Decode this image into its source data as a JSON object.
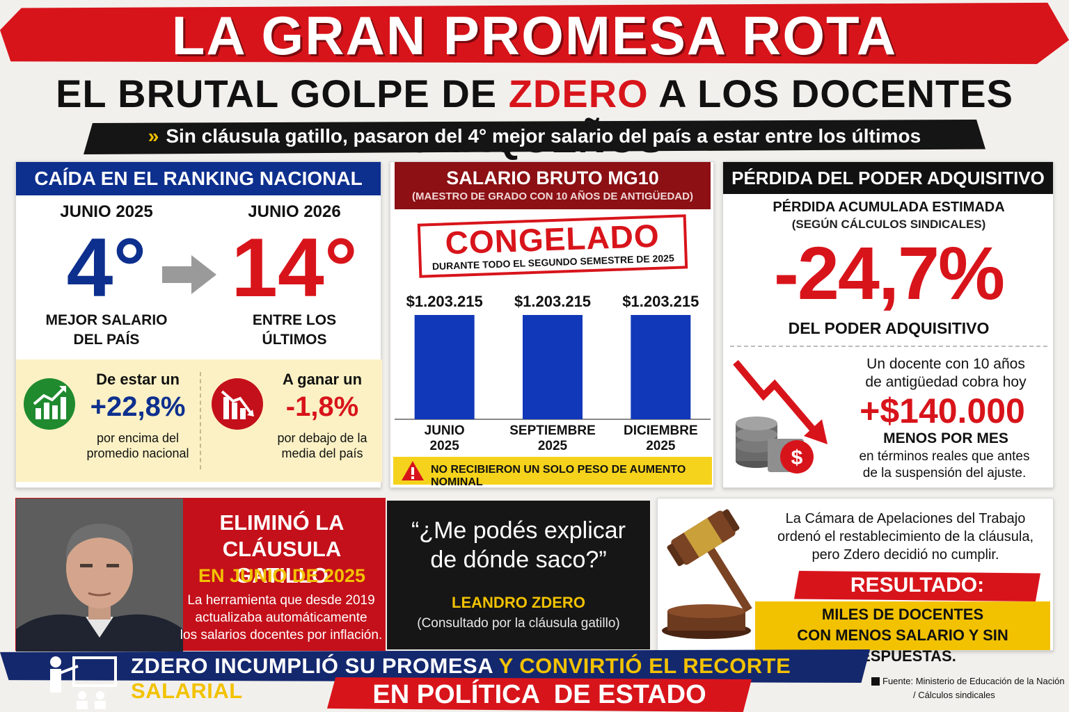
{
  "header": {
    "title": "LA GRAN PROMESA ROTA",
    "subtitle_pre": "EL BRUTAL GOLPE DE",
    "subtitle_red": "ZDERO",
    "subtitle_post": "A LOS DOCENTES CHAQUEÑOS",
    "tagline": "Sin cláusula gatillo, pasaron del 4° mejor salario del país a estar entre los últimos"
  },
  "ranking": {
    "heading": "CAÍDA EN EL RANKING NACIONAL",
    "before_year": "JUNIO 2025",
    "before_rank": "4°",
    "before_label_1": "MEJOR SALARIO",
    "before_label_2": "DEL PAÍS",
    "after_year": "JUNIO 2026",
    "after_rank": "14°",
    "after_label_1": "ENTRE LOS",
    "after_label_2": "ÚLTIMOS",
    "stat_up_pre": "De estar un",
    "stat_up_value": "+22,8%",
    "stat_up_1": "por encima del",
    "stat_up_2": "promedio nacional",
    "stat_down_pre": "A ganar un",
    "stat_down_value": "-1,8%",
    "stat_down_1": "por debajo de la",
    "stat_down_2": "media del país"
  },
  "salary": {
    "heading": "SALARIO BRUTO MG10",
    "subheading": "(MAESTRO DE GRADO CON 10 AÑOS DE ANTIGÜEDAD)",
    "stamp": "CONGELADO",
    "stamp_sub": "DURANTE TODO EL SEGUNDO SEMESTRE DE 2025",
    "warning": "NO RECIBIERON UN SOLO PESO DE AUMENTO NOMINAL"
  },
  "chart_data": {
    "type": "bar",
    "categories": [
      "JUNIO 2025",
      "SEPTIEMBRE 2025",
      "DICIEMBRE 2025"
    ],
    "category_lines": [
      [
        "JUNIO",
        "2025"
      ],
      [
        "SEPTIEMBRE",
        "2025"
      ],
      [
        "DICIEMBRE",
        "2025"
      ]
    ],
    "values": [
      1203215,
      1203215,
      1203215
    ],
    "value_labels": [
      "$1.203.215",
      "$1.203.215",
      "$1.203.215"
    ],
    "title": "SALARIO BRUTO MG10",
    "bar_color": "#1138b8"
  },
  "purchasing": {
    "heading": "PÉRDIDA DEL PODER ADQUISITIVO",
    "sub1": "PÉRDIDA ACUMULADA ESTIMADA",
    "sub2": "(SEGÚN CÁLCULOS SINDICALES)",
    "value": "-24,7%",
    "value_label": "DEL PODER ADQUISITIVO",
    "docente_1": "Un docente con 10 años",
    "docente_2": "de antigüedad cobra hoy",
    "amount": "+$140.000",
    "amount_label": "MENOS POR MES",
    "real_1": "en términos reales que antes",
    "real_2": "de la suspensión del ajuste."
  },
  "clausula": {
    "line1": "ELIMINÓ LA",
    "line2": "CLÁUSULA GATILLO",
    "date": "EN JUNIO DE 2025",
    "desc1": "La herramienta que desde 2019",
    "desc2": "actualizaba automáticamente",
    "desc3": "los salarios docentes por inflación."
  },
  "quote": {
    "text1": "“¿Me podés explicar",
    "text2": "de dónde saco?”",
    "author": "LEANDRO ZDERO",
    "context": "(Consultado por la cláusula gatillo)"
  },
  "court": {
    "text1": "La Cámara de Apelaciones del Trabajo",
    "text2": "ordenó el restablecimiento de la cláusula,",
    "text3": "pero Zdero decidió no cumplir.",
    "result_label": "RESULTADO:",
    "result1": "MILES DE DOCENTES",
    "result2": "CON MENOS SALARIO Y SIN RESPUESTAS."
  },
  "footer": {
    "line1_white": "ZDERO INCUMPLIÓ SU PROMESA",
    "line1_yellow": "Y CONVIRTIÓ EL RECORTE SALARIAL",
    "line2": "EN POLÍTICA  DE ESTADO",
    "source1": "Fuente: Ministerio de Educación de la Nación",
    "source2": "/ Cálculos sindicales"
  },
  "colors": {
    "red": "#d8141b",
    "navy": "#0d2f8e",
    "yellow": "#f2c200",
    "dark_red": "#8c1014",
    "green": "#1f8a2e"
  },
  "icons": [
    "chevrons-icon",
    "arrow-right-icon",
    "growth-chart-icon",
    "decline-chart-icon",
    "warning-icon",
    "falling-arrow-icon",
    "coins-icon",
    "dollar-badge-icon",
    "gavel-icon",
    "teacher-icon",
    "square-bullet-icon"
  ]
}
